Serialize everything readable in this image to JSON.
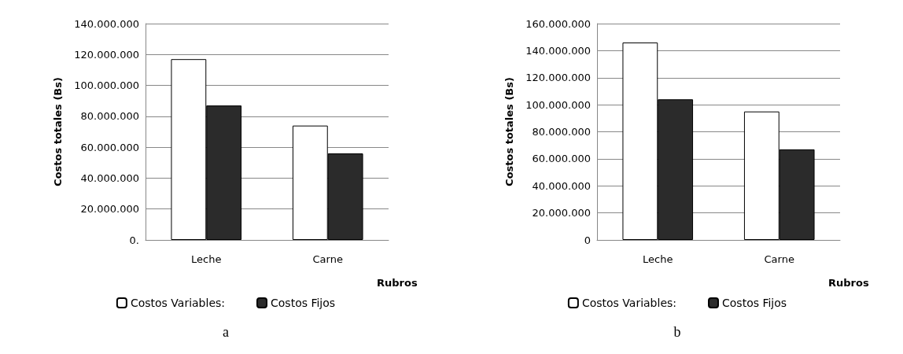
{
  "chart_data": [
    {
      "type": "bar",
      "categories": [
        "Leche",
        "Carne"
      ],
      "xlabel": "Rubros",
      "ylabel": "Costos totales (Bs)",
      "series": [
        {
          "name": "Costos Variables:",
          "color": "#ffffff",
          "values": [
            117000000,
            74000000
          ]
        },
        {
          "name": "Costos Fijos",
          "color": "#2b2b2b",
          "values": [
            87000000,
            56000000
          ]
        }
      ],
      "ylim": [
        0,
        140000000
      ],
      "yticks": [
        {
          "value": 0,
          "label": "0."
        },
        {
          "value": 20000000,
          "label": "20.000.000"
        },
        {
          "value": 40000000,
          "label": "40.000.000"
        },
        {
          "value": 60000000,
          "label": "60.000.000"
        },
        {
          "value": 80000000,
          "label": "80.000.000"
        },
        {
          "value": 100000000,
          "label": "100.000.000"
        },
        {
          "value": 120000000,
          "label": "120.000.000"
        },
        {
          "value": 140000000,
          "label": "140.000.000"
        }
      ],
      "grid": "y",
      "legend": "bottom",
      "annotations": [
        "a"
      ]
    },
    {
      "type": "bar",
      "categories": [
        "Leche",
        "Carne"
      ],
      "xlabel": "Rubros",
      "ylabel": "Costos totales (Bs)",
      "series": [
        {
          "name": "Costos Variables:",
          "color": "#ffffff",
          "values": [
            146000000,
            95000000
          ]
        },
        {
          "name": "Costos Fijos",
          "color": "#2b2b2b",
          "values": [
            104000000,
            67000000
          ]
        }
      ],
      "ylim": [
        0,
        160000000
      ],
      "yticks": [
        0,
        {
          "value": 20000000,
          "label": "20.000.000"
        },
        {
          "value": 40000000,
          "label": "40.000.000"
        },
        {
          "value": 60000000,
          "label": "60.000.000"
        },
        {
          "value": 80000000,
          "label": "80.000.000"
        },
        {
          "value": 100000000,
          "label": "100.000.000"
        },
        {
          "value": 120000000,
          "label": "120.000.000"
        },
        {
          "value": 140000000,
          "label": "140.000.000"
        },
        {
          "value": 160000000,
          "label": "160.000.000"
        }
      ],
      "grid": "y",
      "legend": "bottom",
      "annotations": [
        "b"
      ]
    }
  ]
}
